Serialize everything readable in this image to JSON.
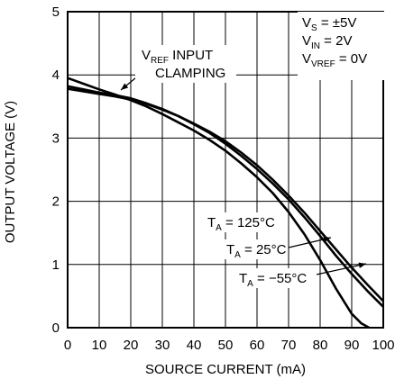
{
  "chart_data": {
    "type": "line",
    "title": "",
    "xlabel": "SOURCE CURRENT (mA)",
    "ylabel": "OUTPUT VOLTAGE (V)",
    "xlim": [
      0,
      100
    ],
    "ylim": [
      0,
      5
    ],
    "xticks": [
      "0",
      "10",
      "20",
      "30",
      "40",
      "50",
      "60",
      "70",
      "80",
      "90",
      "100"
    ],
    "yticks": [
      "0",
      "1",
      "2",
      "3",
      "4",
      "5"
    ],
    "grid": true,
    "conditions": [
      {
        "main": "V",
        "sub": "S",
        "rest": " = ±5V"
      },
      {
        "main": "V",
        "sub": "IN",
        "rest": " = 2V"
      },
      {
        "main": "V",
        "sub": "VREF",
        "rest": " = 0V"
      }
    ],
    "clamp_annotation": {
      "line1_main": "V",
      "line1_sub": "REF",
      "line1_rest": " INPUT",
      "line2": "CLAMPING"
    },
    "series": [
      {
        "name": "T_A = 125°C",
        "label": {
          "main": "T",
          "sub": "A",
          "rest": " = 125°C"
        },
        "x": [
          0,
          5,
          10,
          15,
          20,
          25,
          30,
          35,
          40,
          45,
          50,
          55,
          60,
          65,
          70,
          75,
          80,
          85,
          90,
          93,
          95.5
        ],
        "y": [
          3.95,
          3.86,
          3.77,
          3.69,
          3.6,
          3.5,
          3.38,
          3.25,
          3.12,
          2.97,
          2.8,
          2.6,
          2.38,
          2.13,
          1.83,
          1.48,
          1.07,
          0.62,
          0.22,
          0.07,
          0
        ]
      },
      {
        "name": "T_A = 25°C",
        "label": {
          "main": "T",
          "sub": "A",
          "rest": " = 25°C"
        },
        "x": [
          0,
          5,
          10,
          15,
          20,
          25,
          30,
          35,
          40,
          45,
          50,
          55,
          60,
          65,
          70,
          75,
          80,
          85,
          90,
          95,
          100
        ],
        "y": [
          3.82,
          3.77,
          3.72,
          3.68,
          3.63,
          3.55,
          3.46,
          3.35,
          3.22,
          3.08,
          2.91,
          2.72,
          2.51,
          2.28,
          2.03,
          1.75,
          1.45,
          1.14,
          0.85,
          0.58,
          0.33
        ]
      },
      {
        "name": "T_A = −55°C",
        "label": {
          "main": "T",
          "sub": "A",
          "rest": " = −55°C"
        },
        "x": [
          0,
          5,
          10,
          15,
          20,
          25,
          30,
          35,
          40,
          45,
          50,
          55,
          60,
          65,
          70,
          75,
          80,
          85,
          90,
          95,
          100
        ],
        "y": [
          3.78,
          3.74,
          3.7,
          3.66,
          3.61,
          3.54,
          3.45,
          3.35,
          3.23,
          3.1,
          2.95,
          2.77,
          2.57,
          2.34,
          2.09,
          1.82,
          1.53,
          1.24,
          0.95,
          0.68,
          0.42
        ]
      }
    ]
  }
}
